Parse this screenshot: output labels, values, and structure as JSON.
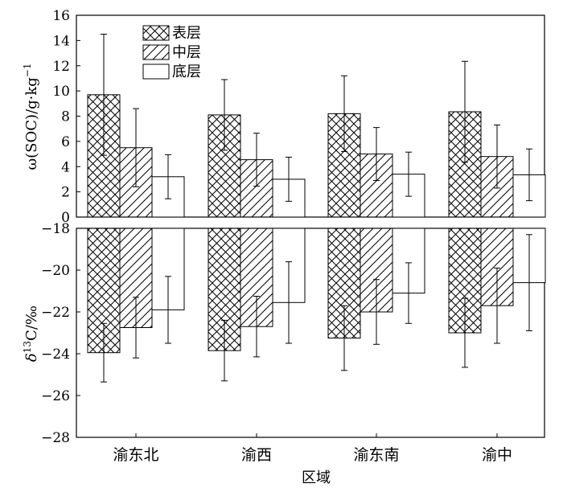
{
  "chart_data": [
    {
      "type": "bar",
      "panel": "top",
      "categories": [
        "渝东北",
        "渝西",
        "渝东南",
        "渝中"
      ],
      "series": [
        {
          "name": "表层",
          "pattern": "crosshatch",
          "values": [
            9.7,
            8.1,
            8.2,
            8.35
          ],
          "error": [
            4.8,
            2.8,
            3.0,
            4.0
          ]
        },
        {
          "name": "中层",
          "pattern": "diagonal",
          "values": [
            5.5,
            4.55,
            5.0,
            4.8
          ],
          "error": [
            3.1,
            2.1,
            2.1,
            2.5
          ]
        },
        {
          "name": "底层",
          "pattern": "none",
          "values": [
            3.2,
            3.0,
            3.4,
            3.35
          ],
          "error": [
            1.75,
            1.75,
            1.75,
            2.05
          ]
        }
      ],
      "ylabel_main": "ω(SOC)/g·kg",
      "ylabel_sup": "−1",
      "ylim": [
        0,
        16
      ],
      "yticks": [
        "0",
        "2",
        "4",
        "6",
        "8",
        "10",
        "12",
        "14",
        "16"
      ],
      "legend": "top-left"
    },
    {
      "type": "bar",
      "panel": "bottom",
      "categories": [
        "渝东北",
        "渝西",
        "渝东南",
        "渝中"
      ],
      "series": [
        {
          "name": "表层",
          "pattern": "crosshatch",
          "values": [
            -23.95,
            -23.85,
            -23.25,
            -23.0
          ],
          "error": [
            1.4,
            1.45,
            1.55,
            1.65
          ]
        },
        {
          "name": "中层",
          "pattern": "diagonal",
          "values": [
            -22.75,
            -22.7,
            -22.0,
            -21.7
          ],
          "error": [
            1.45,
            1.45,
            1.55,
            1.8
          ]
        },
        {
          "name": "底层",
          "pattern": "none",
          "values": [
            -21.9,
            -21.55,
            -21.1,
            -20.6
          ],
          "error": [
            1.6,
            1.95,
            1.45,
            2.3
          ]
        }
      ],
      "ylabel_pre": "δ",
      "ylabel_sup": "13",
      "ylabel_post": "C/‰",
      "ylim": [
        -28,
        -18
      ],
      "yticks": [
        "−18",
        "−20",
        "−22",
        "−24",
        "−26",
        "−28"
      ],
      "xlabel": "区域"
    }
  ]
}
